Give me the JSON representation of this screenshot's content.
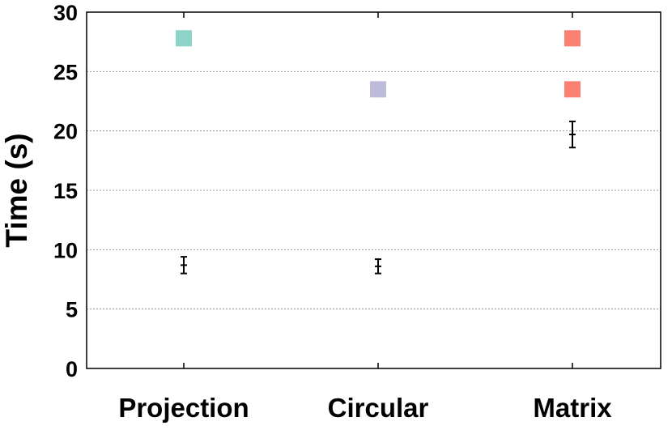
{
  "chart_data": {
    "type": "scatter",
    "ylabel": "Time (s)",
    "xlabel": "",
    "categories": [
      "Projection",
      "Circular",
      "Matrix"
    ],
    "ylim": [
      0,
      30
    ],
    "yticks": [
      0,
      5,
      10,
      15,
      20,
      25,
      30
    ],
    "grid": "horizontal dotted",
    "error_bars": [
      {
        "category": "Projection",
        "mean": 8.7,
        "low": 8.0,
        "high": 9.4
      },
      {
        "category": "Circular",
        "mean": 8.6,
        "low": 8.0,
        "high": 9.2
      },
      {
        "category": "Matrix",
        "mean": 19.7,
        "low": 18.6,
        "high": 20.8
      }
    ],
    "markers": [
      {
        "category": "Projection",
        "y": 27.8,
        "color": "#8dd3c7"
      },
      {
        "category": "Circular",
        "y": 23.5,
        "color": "#bebada"
      },
      {
        "category": "Matrix",
        "y": 27.8,
        "color": "#fb8072"
      },
      {
        "category": "Matrix",
        "y": 23.5,
        "color": "#fb8072"
      }
    ]
  }
}
